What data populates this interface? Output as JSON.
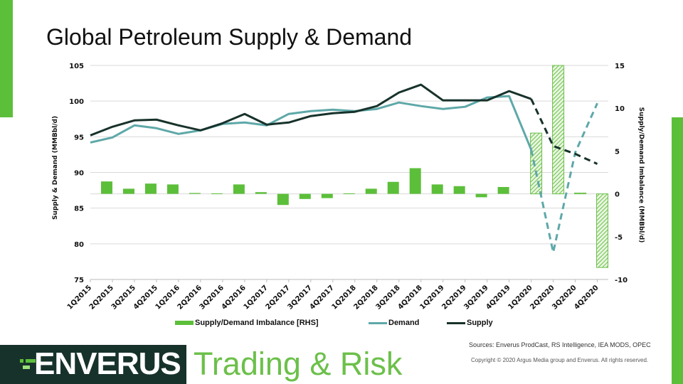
{
  "title": "Global Petroleum Supply & Demand",
  "colors": {
    "accent": "#5cbf3a",
    "demand": "#5fa8a8",
    "supply": "#17322b",
    "hatch": "#7dc657"
  },
  "chart_data": {
    "type": "bar+line",
    "title": "Global Petroleum Supply & Demand",
    "categories": [
      "1Q2015",
      "2Q2015",
      "3Q2015",
      "4Q2015",
      "1Q2016",
      "2Q2016",
      "3Q2016",
      "4Q2016",
      "1Q2017",
      "2Q2017",
      "3Q2017",
      "4Q2017",
      "1Q2018",
      "2Q2018",
      "3Q2018",
      "4Q2018",
      "1Q2019",
      "2Q2019",
      "3Q2019",
      "4Q2019",
      "1Q2020",
      "2Q2020",
      "3Q2020",
      "4Q2020"
    ],
    "ylabel": "Supply & Demand (MMBbl/d)",
    "y2label": "Supply/Demand Imbalance (MMBbl/d)",
    "ylim": [
      75,
      105
    ],
    "y2lim": [
      -10,
      15
    ],
    "yticks": [
      "75",
      "80",
      "85",
      "90",
      "95",
      "100",
      "105"
    ],
    "y2ticks": [
      "-10",
      "-5",
      "0",
      "5",
      "10",
      "15"
    ],
    "grid": true,
    "legend_position": "bottom",
    "forecast_start": "1Q2020",
    "series": [
      {
        "name": "Supply/Demand Imbalance [RHS]",
        "type": "bar",
        "axis": "right",
        "values": [
          null,
          1.45,
          0.6,
          1.2,
          1.1,
          0.1,
          0.05,
          1.1,
          0.2,
          -1.3,
          -0.6,
          -0.5,
          0.05,
          0.6,
          1.4,
          3.0,
          1.1,
          0.9,
          -0.4,
          0.8,
          7.1,
          15.0,
          0.1,
          -8.6
        ]
      },
      {
        "name": "Demand",
        "type": "line",
        "axis": "left",
        "values": [
          94.2,
          94.9,
          96.6,
          96.2,
          95.4,
          95.9,
          96.8,
          97.0,
          96.6,
          98.2,
          98.6,
          98.8,
          98.6,
          98.9,
          99.8,
          99.3,
          98.9,
          99.2,
          100.5,
          100.7,
          93.2,
          78.8,
          92.8,
          99.7
        ]
      },
      {
        "name": "Supply",
        "type": "line",
        "axis": "left",
        "values": [
          95.2,
          96.4,
          97.3,
          97.4,
          96.6,
          95.9,
          96.9,
          98.2,
          96.7,
          97.0,
          97.9,
          98.3,
          98.5,
          99.3,
          101.2,
          102.3,
          100.1,
          100.1,
          100.1,
          101.4,
          100.3,
          93.7,
          92.6,
          91.2
        ]
      }
    ]
  },
  "legend": {
    "imbalance": "Supply/Demand Imbalance [RHS]",
    "demand": "Demand",
    "supply": "Supply"
  },
  "footer": {
    "sources": "Sources: Enverus ProdCast, RS Intelligence, IEA MODS, OPEC",
    "copyright": "Copyright © 2020 Argus Media group and Enverus. All rights reserved.",
    "logo": "ENVERUS",
    "brand_sub": "Trading & Risk"
  }
}
